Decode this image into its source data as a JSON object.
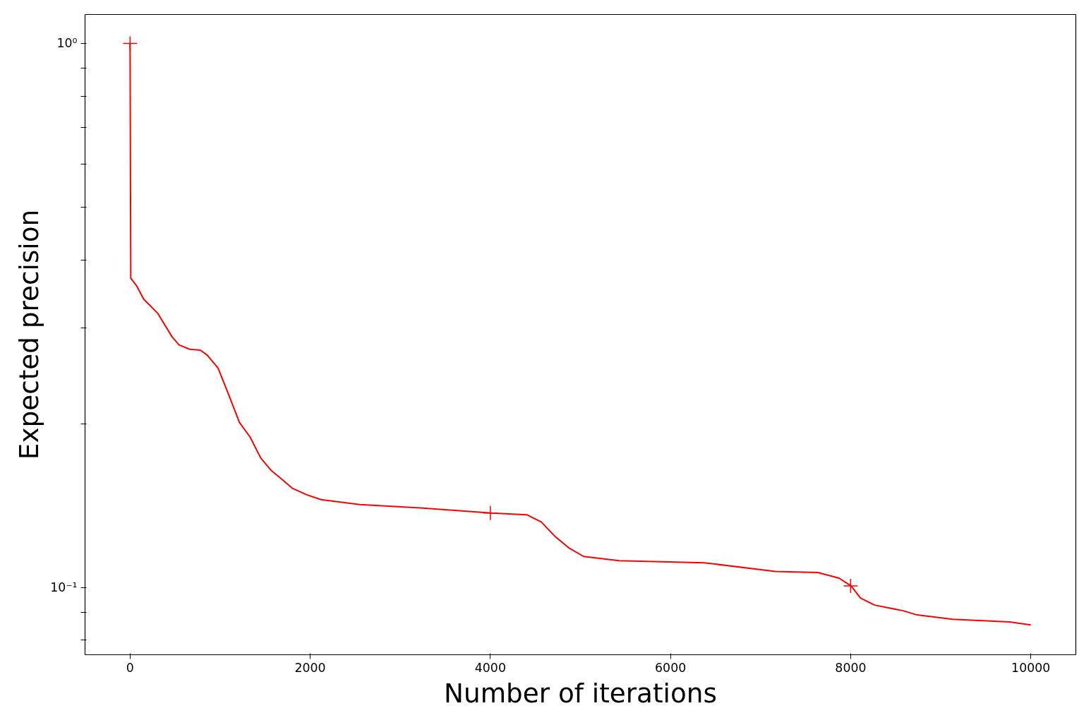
{
  "chart_data": {
    "type": "line",
    "xlabel": "Number of iterations",
    "ylabel": "Expected precision",
    "log": "y",
    "grid": false,
    "xlim": [
      -500,
      10500
    ],
    "xticks": [
      0,
      2000,
      4000,
      6000,
      8000,
      10000
    ],
    "ylim": [
      0.0752,
      1.13
    ],
    "yticks": [
      {
        "value": 0.08,
        "label": null
      },
      {
        "value": 0.09,
        "label": null
      },
      {
        "value": 0.1,
        "label": "10⁻¹"
      },
      {
        "value": 0.2,
        "label": null
      },
      {
        "value": 0.3,
        "label": null
      },
      {
        "value": 0.4,
        "label": null
      },
      {
        "value": 0.5,
        "label": null
      },
      {
        "value": 0.6,
        "label": null
      },
      {
        "value": 0.7,
        "label": null
      },
      {
        "value": 0.8,
        "label": null
      },
      {
        "value": 0.9,
        "label": null
      },
      {
        "value": 1,
        "label": "10⁰"
      }
    ],
    "series": [
      {
        "color": "#ff0000",
        "marker": "none",
        "line_style": "solid",
        "x": [
          0,
          8,
          70,
          150,
          307,
          465,
          544,
          662,
          780,
          859,
          977,
          1095,
          1214,
          1332,
          1450,
          1568,
          1686,
          1805,
          1962,
          2120,
          2553,
          3223,
          4011,
          4405,
          4563,
          4720,
          4878,
          5035,
          5429,
          6375,
          7163,
          7636,
          7872,
          8006,
          8109,
          8266,
          8582,
          8739,
          9133,
          9764,
          10000
        ],
        "values": [
          1.0,
          0.37,
          0.359,
          0.339,
          0.319,
          0.289,
          0.279,
          0.274,
          0.273,
          0.267,
          0.253,
          0.226,
          0.201,
          0.189,
          0.173,
          0.164,
          0.158,
          0.152,
          0.148,
          0.145,
          0.142,
          0.14,
          0.137,
          0.136,
          0.132,
          0.124,
          0.118,
          0.114,
          0.112,
          0.111,
          0.107,
          0.1065,
          0.104,
          0.1006,
          0.0956,
          0.0928,
          0.0906,
          0.089,
          0.0874,
          0.0864,
          0.0853
        ]
      },
      {
        "type": "scatter",
        "color": "#ff0000",
        "marker": "cross",
        "x": [
          0,
          4000,
          8000
        ],
        "values": [
          1.0,
          0.137,
          0.1006
        ]
      }
    ]
  }
}
